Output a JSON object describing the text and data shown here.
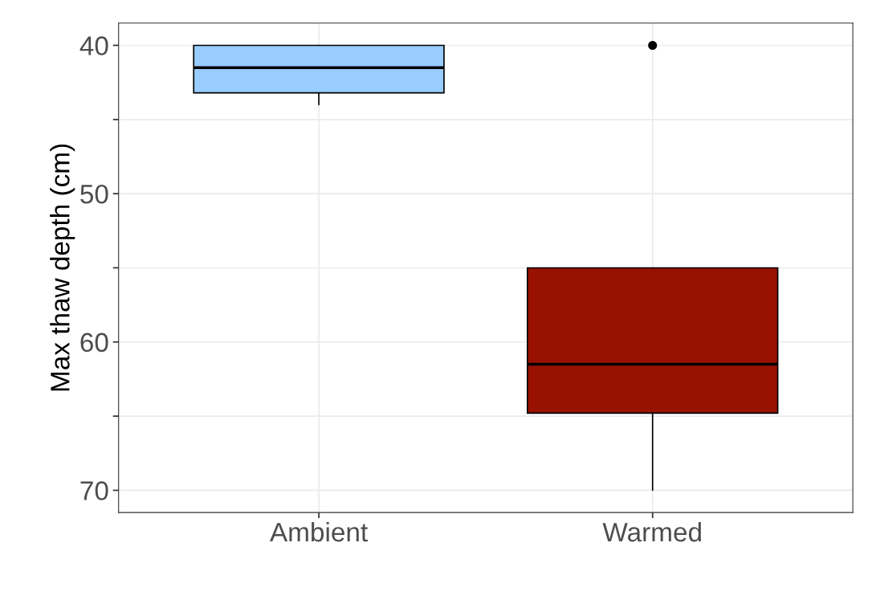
{
  "chart_data": {
    "type": "box",
    "ylabel": "Max thaw depth (cm)",
    "categories": [
      "Ambient",
      "Warmed"
    ],
    "boxes": [
      {
        "low": 40,
        "q1": 40,
        "median": 41.5,
        "q3": 43.2,
        "high": 44
      },
      {
        "low": 55,
        "q1": 55,
        "median": 61.5,
        "q3": 64.8,
        "high": 70,
        "outliers": [
          40
        ]
      }
    ],
    "colors": [
      "#99ccff",
      "#991100"
    ],
    "ylim": [
      71.5,
      38.5
    ],
    "yticks": [
      40,
      {
        "value": 45,
        "label": null
      },
      50,
      {
        "value": 55,
        "label": null
      },
      60,
      {
        "value": 65,
        "label": null
      },
      70
    ],
    "grid": true
  }
}
